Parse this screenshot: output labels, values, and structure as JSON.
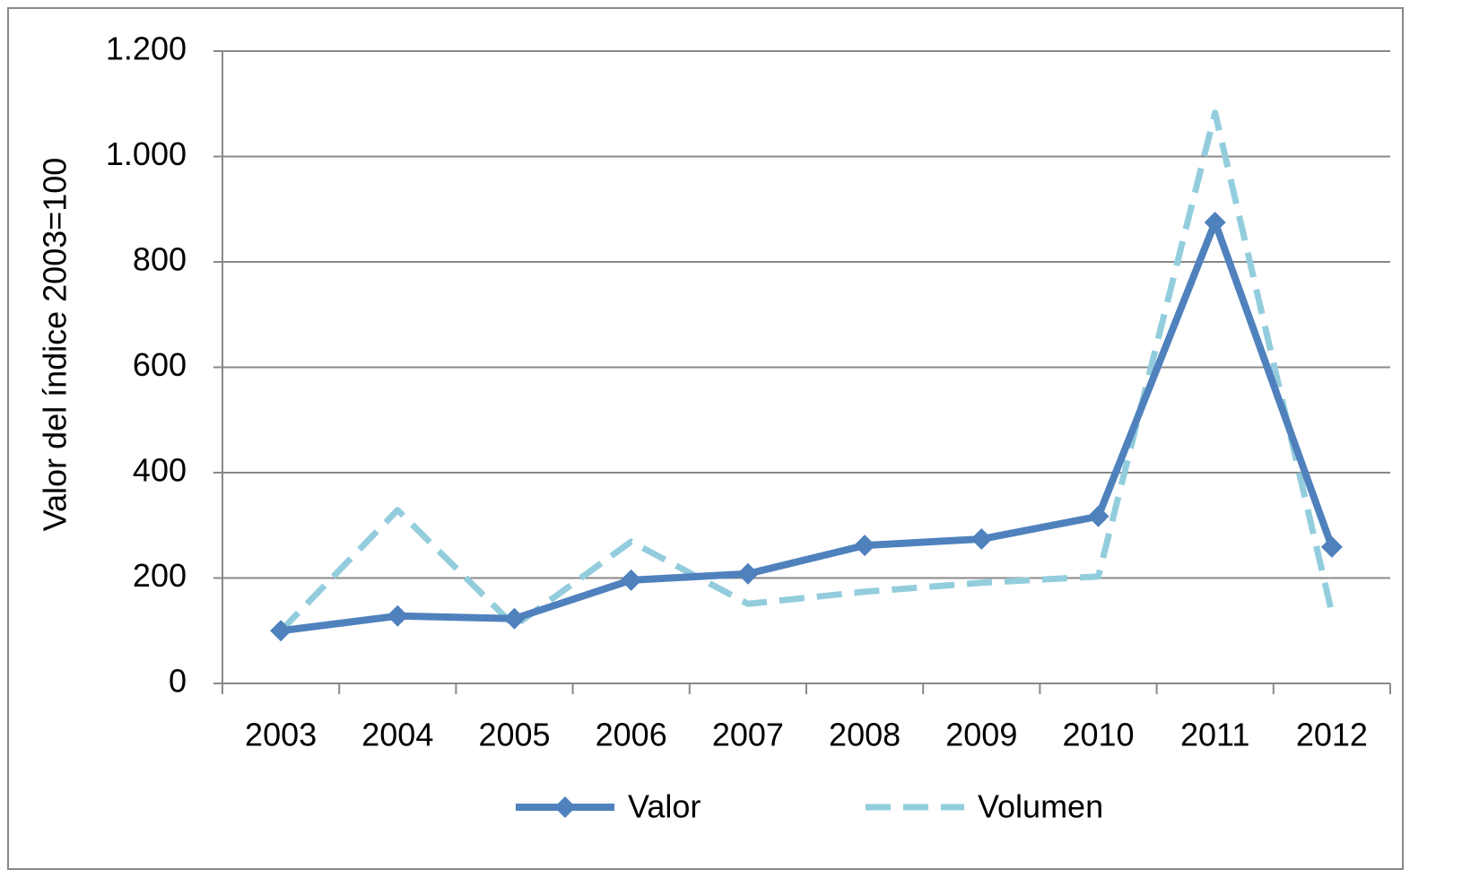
{
  "chart_data": {
    "type": "line",
    "y_label": "Valor del índice 2003=100",
    "categories": [
      "2003",
      "2004",
      "2005",
      "2006",
      "2007",
      "2008",
      "2009",
      "2010",
      "2011",
      "2012"
    ],
    "series": [
      {
        "name": "Valor",
        "color": "#4f81bd",
        "line_style": "solid",
        "marker": "diamond",
        "values": [
          100,
          128,
          123,
          196,
          208,
          262,
          274,
          317,
          875,
          259
        ]
      },
      {
        "name": "Volumen",
        "color": "#93cddd",
        "line_style": "dashed",
        "marker": "none",
        "values": [
          100,
          329,
          109,
          269,
          151,
          174,
          191,
          203,
          1083,
          134
        ]
      }
    ],
    "ylim": [
      0,
      1200
    ],
    "yticks": [
      0,
      200,
      400,
      600,
      800,
      {
        "value": 1000,
        "label": "1.000"
      },
      {
        "value": 1200,
        "label": "1.200"
      }
    ],
    "grid": true,
    "legend": "bottom"
  }
}
